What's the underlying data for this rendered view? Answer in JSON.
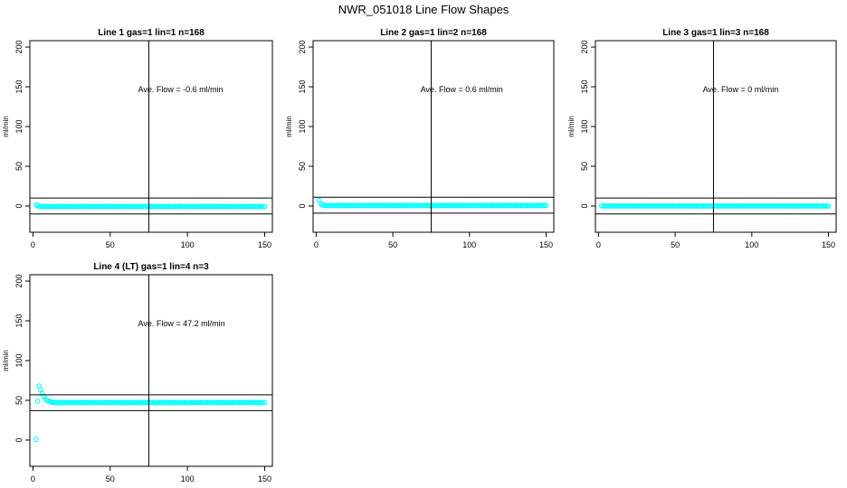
{
  "title": "NWR_051018  Line Flow Shapes",
  "marker_color": "#00FFFF",
  "chart_data": [
    {
      "type": "scatter",
      "title": "Line 1 gas=1 lin=1 n=168",
      "ylabel": "ml/min",
      "xlim": [
        -2,
        155
      ],
      "ylim": [
        -33,
        208
      ],
      "xticks": [
        0,
        50,
        100,
        150
      ],
      "yticks": [
        0,
        50,
        100,
        150,
        200
      ],
      "vline": 75,
      "hlines": [
        10,
        -10
      ],
      "annotation": {
        "text": "Ave. Flow =  -0.6  ml/min",
        "x": 68,
        "y": 148
      },
      "series": [
        {
          "start": 2,
          "end": 150,
          "values": [
            [
              2,
              1.5
            ],
            [
              3,
              0.5
            ]
          ],
          "default": -0.6
        }
      ]
    },
    {
      "type": "scatter",
      "title": "Line 2 gas=1 lin=2 n=168",
      "ylabel": "ml/min",
      "xlim": [
        -2,
        155
      ],
      "ylim": [
        -33,
        208
      ],
      "xticks": [
        0,
        50,
        100,
        150
      ],
      "yticks": [
        0,
        50,
        100,
        150,
        200
      ],
      "vline": 75,
      "hlines": [
        11,
        -9
      ],
      "annotation": {
        "text": "Ave. Flow =  0.6  ml/min",
        "x": 68,
        "y": 148
      },
      "series": [
        {
          "start": 2,
          "end": 150,
          "values": [
            [
              2,
              7
            ],
            [
              3,
              3
            ],
            [
              4,
              1.5
            ]
          ],
          "default": 0.6
        }
      ]
    },
    {
      "type": "scatter",
      "title": "Line 3 gas=1 lin=3 n=168",
      "ylabel": "ml/min",
      "xlim": [
        -2,
        155
      ],
      "ylim": [
        -33,
        208
      ],
      "xticks": [
        0,
        50,
        100,
        150
      ],
      "yticks": [
        0,
        50,
        100,
        150,
        200
      ],
      "vline": 75,
      "hlines": [
        10,
        -10
      ],
      "annotation": {
        "text": "Ave. Flow =  0  ml/min",
        "x": 68,
        "y": 148
      },
      "series": [
        {
          "start": 2,
          "end": 150,
          "values": [
            [
              2,
              0.5
            ]
          ],
          "default": 0
        }
      ]
    },
    {
      "type": "scatter",
      "title": "Line 4 (LT) gas=1 lin=4 n=3",
      "ylabel": "ml/min",
      "xlim": [
        -2,
        155
      ],
      "ylim": [
        -33,
        208
      ],
      "xticks": [
        0,
        50,
        100,
        150
      ],
      "yticks": [
        0,
        50,
        100,
        150,
        200
      ],
      "vline": 75,
      "hlines": [
        57,
        37
      ],
      "annotation": {
        "text": "Ave. Flow =  47.2  ml/min",
        "x": 68,
        "y": 148
      },
      "series": [
        {
          "start": 2,
          "end": 150,
          "values": [
            [
              2,
              1
            ],
            [
              3,
              49
            ],
            [
              4,
              68
            ],
            [
              5,
              63
            ],
            [
              6,
              59
            ],
            [
              7,
              55
            ],
            [
              8,
              52
            ],
            [
              9,
              50
            ],
            [
              10,
              49
            ],
            [
              11,
              48.5
            ],
            [
              12,
              48
            ]
          ],
          "default": 47.2
        }
      ]
    }
  ]
}
